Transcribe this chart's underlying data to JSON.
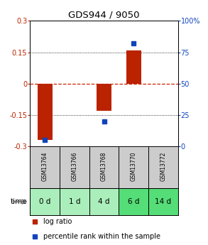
{
  "title": "GDS944 / 9050",
  "samples": [
    "GSM13764",
    "GSM13766",
    "GSM13768",
    "GSM13770",
    "GSM13772"
  ],
  "time_labels": [
    "0 d",
    "1 d",
    "4 d",
    "6 d",
    "14 d"
  ],
  "log_ratio": [
    -0.27,
    0.0,
    -0.13,
    0.16,
    0.0
  ],
  "percentile_rank": [
    5,
    0,
    20,
    82,
    0
  ],
  "ylim_left": [
    -0.3,
    0.3
  ],
  "ylim_right": [
    0,
    100
  ],
  "yticks_left": [
    -0.3,
    -0.15,
    0,
    0.15,
    0.3
  ],
  "yticks_right": [
    0,
    25,
    50,
    75,
    100
  ],
  "bar_color": "#bb2200",
  "dot_color": "#1144bb",
  "zero_line_color": "#cc2200",
  "grid_color": "#555555",
  "sample_bg": "#cccccc",
  "time_bg_light": "#aaeebb",
  "time_bg_medium": "#55dd77",
  "fig_bg": "#ffffff"
}
